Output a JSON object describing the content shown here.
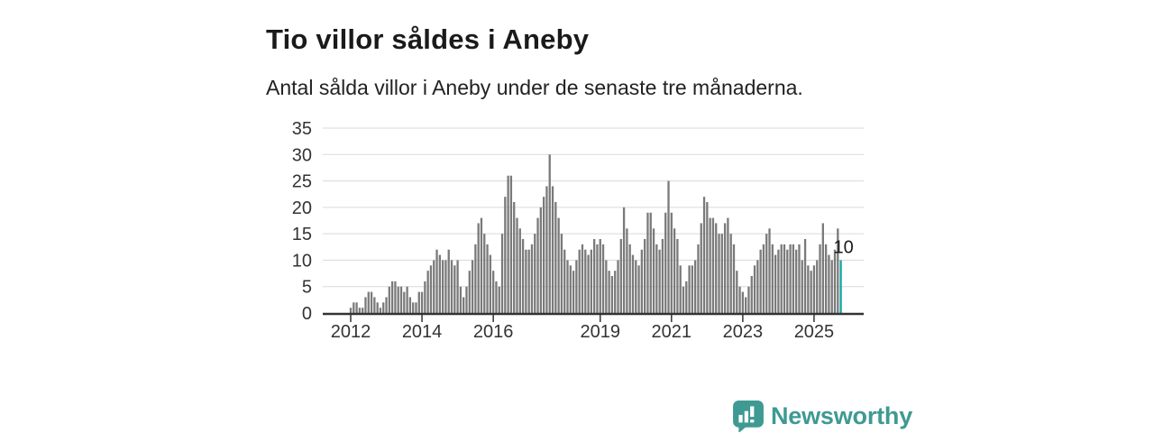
{
  "header": {
    "title": "Tio villor såldes i Aneby",
    "subtitle": "Antal sålda villor i Aneby under de senaste tre månaderna."
  },
  "branding": {
    "name": "Newsworthy",
    "icon": "newsworthy-speech-bubble-chart-icon",
    "color": "#3e9a93"
  },
  "colors": {
    "bar": "#7a7a7a",
    "highlight_bar": "#14a5a0",
    "gridline": "#d9d9d9",
    "axis_line": "#333333",
    "text": "#1a1a1a"
  },
  "chart_data": {
    "type": "bar",
    "title": "Tio villor såldes i Aneby",
    "subtitle": "Antal sålda villor i Aneby under de senaste tre månaderna.",
    "x_start": "2012-01",
    "x_frequency": "monthly",
    "ylim": [
      0,
      35
    ],
    "y_ticks": [
      0,
      5,
      10,
      15,
      20,
      25,
      30,
      35
    ],
    "x_ticks": [
      {
        "label": "2012",
        "month": 0
      },
      {
        "label": "2014",
        "month": 24
      },
      {
        "label": "2016",
        "month": 48
      },
      {
        "label": "2019",
        "month": 84
      },
      {
        "label": "2021",
        "month": 108
      },
      {
        "label": "2023",
        "month": 132
      },
      {
        "label": "2025",
        "month": 156
      }
    ],
    "grid": true,
    "legend": false,
    "last_value_label": "10",
    "highlight_last": true,
    "values": [
      1,
      2,
      2,
      1,
      1,
      3,
      4,
      4,
      3,
      2,
      1,
      2,
      3,
      5,
      6,
      6,
      5,
      5,
      4,
      5,
      3,
      2,
      2,
      4,
      4,
      6,
      8,
      9,
      10,
      12,
      11,
      10,
      10,
      12,
      10,
      9,
      10,
      5,
      3,
      5,
      8,
      10,
      13,
      17,
      18,
      15,
      13,
      11,
      8,
      6,
      5,
      15,
      22,
      26,
      26,
      21,
      18,
      16,
      14,
      12,
      12,
      13,
      15,
      18,
      20,
      22,
      24,
      30,
      24,
      21,
      18,
      15,
      12,
      10,
      9,
      8,
      10,
      12,
      13,
      12,
      11,
      12,
      14,
      13,
      14,
      13,
      10,
      8,
      7,
      8,
      10,
      14,
      20,
      16,
      13,
      11,
      10,
      9,
      12,
      14,
      19,
      19,
      16,
      13,
      12,
      14,
      19,
      25,
      19,
      16,
      14,
      9,
      5,
      6,
      9,
      9,
      10,
      13,
      17,
      22,
      21,
      18,
      18,
      17,
      15,
      15,
      17,
      18,
      15,
      13,
      8,
      5,
      4,
      3,
      5,
      7,
      9,
      10,
      12,
      13,
      15,
      16,
      13,
      11,
      12,
      13,
      13,
      12,
      13,
      13,
      12,
      13,
      10,
      14,
      9,
      8,
      9,
      10,
      13,
      17,
      13,
      11,
      10,
      12,
      16,
      10
    ]
  }
}
